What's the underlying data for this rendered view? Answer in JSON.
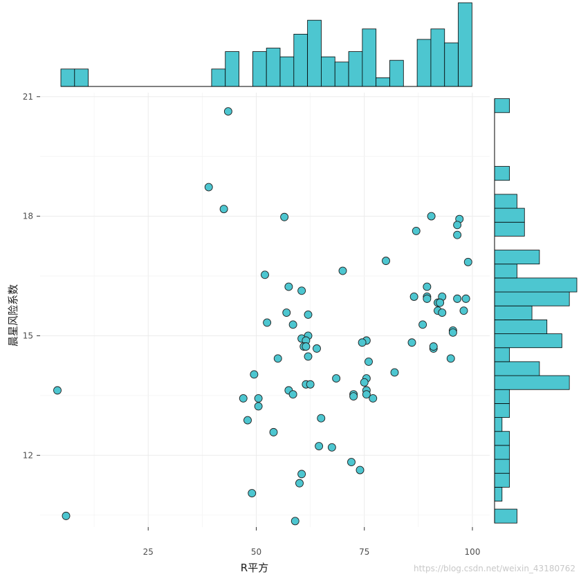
{
  "chart_data": {
    "type": "scatter",
    "title": "",
    "xlabel": "R平方",
    "ylabel": "晨星风险系数",
    "xlim": [
      0,
      104
    ],
    "ylim": [
      10.2,
      21.1
    ],
    "x_ticks": [
      25,
      50,
      75,
      100
    ],
    "y_ticks": [
      12,
      15,
      18,
      21
    ],
    "grid": true,
    "point_color": "#4dc6d0",
    "point_edge": "#222222",
    "bar_color": "#4dc6d0",
    "bar_edge": "#000000",
    "points": [
      {
        "x": 43.5,
        "y": 20.63
      },
      {
        "x": 39.0,
        "y": 18.73
      },
      {
        "x": 42.5,
        "y": 18.18
      },
      {
        "x": 56.5,
        "y": 17.98
      },
      {
        "x": 90.5,
        "y": 18.0
      },
      {
        "x": 97.0,
        "y": 17.93
      },
      {
        "x": 96.5,
        "y": 17.78
      },
      {
        "x": 87.0,
        "y": 17.63
      },
      {
        "x": 96.5,
        "y": 17.53
      },
      {
        "x": 80.0,
        "y": 16.88
      },
      {
        "x": 99.0,
        "y": 16.85
      },
      {
        "x": 70.0,
        "y": 16.63
      },
      {
        "x": 52.0,
        "y": 16.53
      },
      {
        "x": 57.5,
        "y": 16.23
      },
      {
        "x": 60.5,
        "y": 16.13
      },
      {
        "x": 89.5,
        "y": 16.23
      },
      {
        "x": 86.5,
        "y": 15.98
      },
      {
        "x": 89.5,
        "y": 15.98
      },
      {
        "x": 89.5,
        "y": 15.93
      },
      {
        "x": 93.0,
        "y": 15.98
      },
      {
        "x": 96.5,
        "y": 15.93
      },
      {
        "x": 98.5,
        "y": 15.93
      },
      {
        "x": 92.0,
        "y": 15.83
      },
      {
        "x": 92.5,
        "y": 15.83
      },
      {
        "x": 92.0,
        "y": 15.63
      },
      {
        "x": 93.0,
        "y": 15.58
      },
      {
        "x": 98.0,
        "y": 15.63
      },
      {
        "x": 57.0,
        "y": 15.58
      },
      {
        "x": 62.0,
        "y": 15.53
      },
      {
        "x": 52.5,
        "y": 15.33
      },
      {
        "x": 58.5,
        "y": 15.28
      },
      {
        "x": 88.5,
        "y": 15.28
      },
      {
        "x": 95.5,
        "y": 15.13
      },
      {
        "x": 95.5,
        "y": 15.08
      },
      {
        "x": 62.0,
        "y": 15.0
      },
      {
        "x": 60.5,
        "y": 14.93
      },
      {
        "x": 61.5,
        "y": 14.88
      },
      {
        "x": 75.5,
        "y": 14.88
      },
      {
        "x": 74.5,
        "y": 14.83
      },
      {
        "x": 86.0,
        "y": 14.83
      },
      {
        "x": 61.0,
        "y": 14.73
      },
      {
        "x": 61.5,
        "y": 14.73
      },
      {
        "x": 64.0,
        "y": 14.68
      },
      {
        "x": 91.0,
        "y": 14.68
      },
      {
        "x": 91.0,
        "y": 14.73
      },
      {
        "x": 62.0,
        "y": 14.48
      },
      {
        "x": 55.0,
        "y": 14.43
      },
      {
        "x": 95.0,
        "y": 14.43
      },
      {
        "x": 76.0,
        "y": 14.35
      },
      {
        "x": 49.5,
        "y": 14.03
      },
      {
        "x": 82.0,
        "y": 14.08
      },
      {
        "x": 68.5,
        "y": 13.93
      },
      {
        "x": 75.5,
        "y": 13.93
      },
      {
        "x": 75.0,
        "y": 13.83
      },
      {
        "x": 61.5,
        "y": 13.78
      },
      {
        "x": 62.5,
        "y": 13.78
      },
      {
        "x": 4.0,
        "y": 13.63
      },
      {
        "x": 57.5,
        "y": 13.63
      },
      {
        "x": 58.5,
        "y": 13.53
      },
      {
        "x": 72.5,
        "y": 13.53
      },
      {
        "x": 72.5,
        "y": 13.48
      },
      {
        "x": 75.5,
        "y": 13.63
      },
      {
        "x": 75.5,
        "y": 13.53
      },
      {
        "x": 47.0,
        "y": 13.43
      },
      {
        "x": 50.5,
        "y": 13.43
      },
      {
        "x": 50.5,
        "y": 13.23
      },
      {
        "x": 77.0,
        "y": 13.43
      },
      {
        "x": 48.0,
        "y": 12.88
      },
      {
        "x": 65.0,
        "y": 12.93
      },
      {
        "x": 54.0,
        "y": 12.58
      },
      {
        "x": 64.5,
        "y": 12.23
      },
      {
        "x": 67.5,
        "y": 12.2
      },
      {
        "x": 72.0,
        "y": 11.83
      },
      {
        "x": 74.0,
        "y": 11.63
      },
      {
        "x": 60.5,
        "y": 11.53
      },
      {
        "x": 60.0,
        "y": 11.3
      },
      {
        "x": 49.0,
        "y": 11.05
      },
      {
        "x": 6.0,
        "y": 10.48
      },
      {
        "x": 59.0,
        "y": 10.35
      }
    ],
    "x_hist": {
      "bin_start": 4.8,
      "bin_width": 3.17,
      "counts": [
        1,
        1,
        0,
        0,
        0,
        0,
        0,
        0,
        0,
        0,
        0,
        1,
        2,
        0,
        2,
        2.2,
        1.7,
        3,
        3.8,
        1.7,
        1.4,
        2,
        3.3,
        0.5,
        1.5,
        0,
        2.7,
        3.3,
        2.5,
        4.8
      ]
    },
    "y_hist": [
      {
        "y0": 10.3,
        "y1": 10.65,
        "count": 1.5
      },
      {
        "y0": 10.85,
        "y1": 11.2,
        "count": 0.5
      },
      {
        "y0": 11.2,
        "y1": 11.55,
        "count": 1
      },
      {
        "y0": 11.55,
        "y1": 11.9,
        "count": 1
      },
      {
        "y0": 11.9,
        "y1": 12.25,
        "count": 1
      },
      {
        "y0": 12.25,
        "y1": 12.6,
        "count": 1
      },
      {
        "y0": 12.6,
        "y1": 12.95,
        "count": 0.5
      },
      {
        "y0": 12.95,
        "y1": 13.3,
        "count": 1
      },
      {
        "y0": 13.3,
        "y1": 13.65,
        "count": 1
      },
      {
        "y0": 13.65,
        "y1": 14.0,
        "count": 5
      },
      {
        "y0": 14.0,
        "y1": 14.35,
        "count": 3
      },
      {
        "y0": 14.35,
        "y1": 14.7,
        "count": 1
      },
      {
        "y0": 14.7,
        "y1": 15.05,
        "count": 4.5
      },
      {
        "y0": 15.05,
        "y1": 15.4,
        "count": 3.5
      },
      {
        "y0": 15.4,
        "y1": 15.75,
        "count": 2.5
      },
      {
        "y0": 15.75,
        "y1": 16.1,
        "count": 5
      },
      {
        "y0": 16.1,
        "y1": 16.45,
        "count": 5.5
      },
      {
        "y0": 16.45,
        "y1": 16.8,
        "count": 1.5
      },
      {
        "y0": 16.8,
        "y1": 17.15,
        "count": 3
      },
      {
        "y0": 17.5,
        "y1": 17.85,
        "count": 2
      },
      {
        "y0": 17.85,
        "y1": 18.2,
        "count": 2
      },
      {
        "y0": 18.2,
        "y1": 18.55,
        "count": 1.5
      },
      {
        "y0": 18.9,
        "y1": 19.25,
        "count": 1
      },
      {
        "y0": 20.6,
        "y1": 20.95,
        "count": 1
      }
    ]
  },
  "watermark": "https://blog.csdn.net/weixin_43180762"
}
